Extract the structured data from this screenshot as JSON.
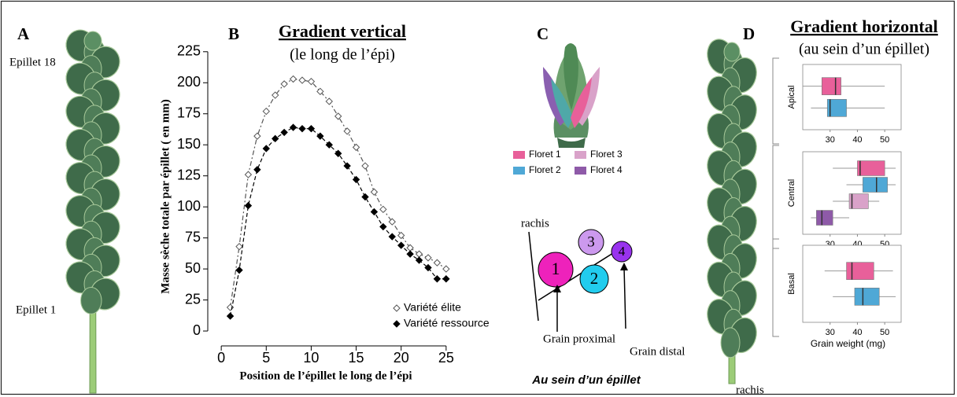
{
  "panel_labels": {
    "a": "A",
    "b": "B",
    "c": "C",
    "d": "D"
  },
  "panel_a": {
    "top_label": "Epillet 18",
    "bottom_label": "Epillet 1"
  },
  "diagram": {
    "rachis": "rachis",
    "grains": [
      "1",
      "2",
      "3",
      "4"
    ],
    "proximal": "Grain proximal",
    "distal": "Grain distal",
    "caption": "Au sein d’un épillet"
  },
  "panel_d": {
    "rachis": "rachis"
  },
  "chart_data": [
    {
      "type": "line",
      "title": "Gradient vertical",
      "subtitle": "(le long de l’épi)",
      "xlabel": "Position de l’épillet le long de l’épi",
      "ylabel": "Masse sèche totale par épillet ( en mm)",
      "x": [
        1,
        2,
        3,
        4,
        5,
        6,
        7,
        8,
        9,
        10,
        11,
        12,
        13,
        14,
        15,
        16,
        17,
        18,
        19,
        20,
        21,
        22,
        23,
        24,
        25
      ],
      "series": [
        {
          "name": "Variété élite",
          "color": "#555555",
          "marker": "diamond-open",
          "dash": "6 3 2 3",
          "values": [
            19,
            68,
            126,
            157,
            177,
            190,
            199,
            203,
            202,
            201,
            193,
            185,
            173,
            161,
            148,
            133,
            112,
            98,
            88,
            77,
            67,
            62,
            59,
            55,
            50
          ]
        },
        {
          "name": "Variété ressource",
          "color": "#000000",
          "marker": "diamond",
          "dash": "5 3",
          "values": [
            12,
            49,
            101,
            130,
            147,
            155,
            160,
            164,
            163,
            163,
            157,
            150,
            143,
            133,
            122,
            108,
            96,
            84,
            76,
            69,
            62,
            57,
            51,
            42,
            42
          ]
        }
      ],
      "xlim": [
        -1.5,
        26.5
      ],
      "xticks": [
        0,
        5,
        10,
        15,
        20,
        25
      ],
      "ylim": [
        -12,
        235
      ],
      "yticks": [
        0,
        25,
        50,
        75,
        100,
        125,
        150,
        175,
        200,
        225
      ],
      "grid": false,
      "legend": "lower right"
    },
    {
      "type": "box",
      "title": "Gradient horizontal",
      "subtitle": "(au sein d’un épillet)",
      "xlabel": "Grain weight (mg)",
      "categories": [
        "Apical",
        "Central",
        "Basal"
      ],
      "series": [
        {
          "name": "Floret 1",
          "color": "#e8609a",
          "values": [
            {
              "low": 20,
              "q1": 27,
              "median": 32,
              "q3": 34,
              "high": 50
            },
            {
              "low": 31,
              "q1": 40,
              "median": 41,
              "q3": 50,
              "high": 54
            },
            {
              "low": 28,
              "q1": 36,
              "median": 38,
              "q3": 46,
              "high": 53
            }
          ]
        },
        {
          "name": "Floret 2",
          "color": "#4fa8d6",
          "values": [
            {
              "low": 23,
              "q1": 29,
              "median": 30,
              "q3": 36,
              "high": 50
            },
            {
              "low": 36,
              "q1": 42,
              "median": 47,
              "q3": 51,
              "high": 54
            },
            {
              "low": 31,
              "q1": 39,
              "median": 42,
              "q3": 48,
              "high": 54
            }
          ]
        },
        {
          "name": "Floret 3",
          "color": "#d9a2c9",
          "values": [
            null,
            {
              "low": 31,
              "q1": 37,
              "median": 38,
              "q3": 44,
              "high": 48
            },
            null
          ]
        },
        {
          "name": "Floret 4",
          "color": "#8e5aa8",
          "values": [
            null,
            {
              "low": 23,
              "q1": 25,
              "median": 27,
              "q3": 31,
              "high": 37
            },
            null
          ]
        }
      ],
      "xlim": [
        20,
        56
      ],
      "xticks": [
        30,
        40,
        50
      ],
      "grid": false
    }
  ]
}
